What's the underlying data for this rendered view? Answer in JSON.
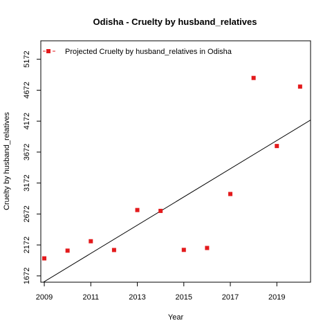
{
  "chart_data": {
    "type": "scatter",
    "title": "Odisha  -  Cruelty by husband_relatives",
    "xlabel": "Year",
    "ylabel": "Cruelty by husband_relatives",
    "x_ticks": [
      "2009",
      "2011",
      "2013",
      "2015",
      "2017",
      "2019"
    ],
    "y_ticks": [
      "1672",
      "2172",
      "2672",
      "3172",
      "3672",
      "4172",
      "4672",
      "5172"
    ],
    "xlim": [
      2008.85,
      2020.45
    ],
    "ylim": [
      1570,
      5470
    ],
    "legend": {
      "position": "top-left",
      "label": "Projected  Cruelty by husband_relatives  in  Odisha"
    },
    "series": [
      {
        "name": "Projected  Cruelty by husband_relatives  in  Odisha",
        "color": "#e31a1c",
        "marker": "square",
        "points": [
          {
            "x": 2009,
            "y": 1955
          },
          {
            "x": 2010,
            "y": 2080
          },
          {
            "x": 2011,
            "y": 2232
          },
          {
            "x": 2012,
            "y": 2090
          },
          {
            "x": 2013,
            "y": 2736
          },
          {
            "x": 2014,
            "y": 2722
          },
          {
            "x": 2015,
            "y": 2092
          },
          {
            "x": 2016,
            "y": 2123
          },
          {
            "x": 2017,
            "y": 2995
          },
          {
            "x": 2018,
            "y": 4870
          },
          {
            "x": 2019,
            "y": 3770
          },
          {
            "x": 2020,
            "y": 4730
          }
        ]
      }
    ],
    "trend_line": {
      "color": "#000000",
      "points": [
        {
          "x": 2008.85,
          "y": 1545
        },
        {
          "x": 2020.45,
          "y": 4190
        }
      ]
    }
  }
}
